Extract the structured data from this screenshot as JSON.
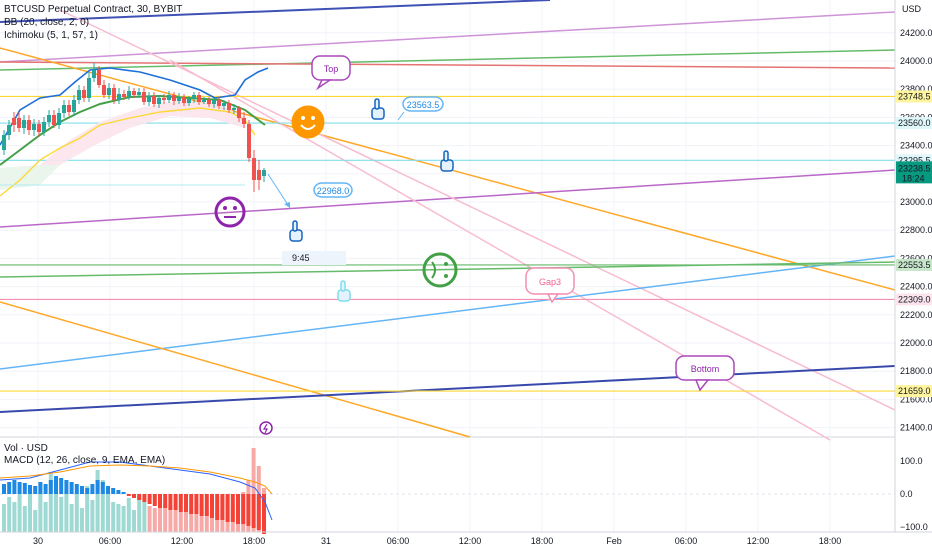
{
  "legend": {
    "symbol": "BTCUSD Perpetual Contract, 30, BYBIT",
    "bb": "BB (20, close, 2, 0)",
    "ichimoku": "Ichimoku (5, 1, 57, 1)",
    "vol": "Vol · USD",
    "macd": "MACD (12, 26, close, 9, EMA, EMA)"
  },
  "price_axis": {
    "currency": "USD",
    "ticks": [
      "24200.0",
      "24000.0",
      "23800.0",
      "23600.0",
      "23400.0",
      "23200.0",
      "23000.0",
      "22800.0",
      "22600.0",
      "22400.0",
      "22200.0",
      "22000.0",
      "21800.0",
      "21600.0",
      "21400.0"
    ],
    "tick_values": [
      24200,
      24000,
      23800,
      23600,
      23400,
      23200,
      23000,
      22800,
      22600,
      22400,
      22200,
      22000,
      21800,
      21600,
      21400
    ]
  },
  "price_tags": [
    {
      "label": "23748.5",
      "value": 23748.5,
      "bg": "#fff59d",
      "fg": "#131722"
    },
    {
      "label": "23560.0",
      "value": 23560,
      "bg": "#e0f7fa",
      "fg": "#131722"
    },
    {
      "label": "23295.5",
      "value": 23295.5,
      "bg": "#e0f7fa",
      "fg": "#131722"
    },
    {
      "label": "22553.5",
      "value": 22553.5,
      "bg": "#c8e6c9",
      "fg": "#131722"
    },
    {
      "label": "22309.0",
      "value": 22309,
      "bg": "#fce4ec",
      "fg": "#131722"
    },
    {
      "label": "21659.0",
      "value": 21659,
      "bg": "#fff59d",
      "fg": "#131722"
    }
  ],
  "last_price": {
    "value_label": "23238.5",
    "countdown": "18:24",
    "value": 23238.5,
    "color": "#089981"
  },
  "macd_axis": {
    "ticks": [
      "100.0",
      "0.0",
      "−100.0"
    ],
    "tick_values": [
      100,
      0,
      -100
    ]
  },
  "time_axis": {
    "labels": [
      "30",
      "06:00",
      "12:00",
      "18:00",
      "31",
      "06:00",
      "12:00",
      "18:00",
      "Feb",
      "06:00",
      "12:00",
      "18:00"
    ]
  },
  "annotations": {
    "top_label": "Top",
    "bottom_label": "Bottom",
    "gap_label": "Gap3",
    "callout_upper": "23563.5",
    "callout_lower": "22968.0",
    "time_hint": "9:45"
  },
  "colors": {
    "up": "#26a69a",
    "down": "#ef5350",
    "bb_basis": "#2962ff",
    "ichimoku_base": "#43a047",
    "ichimoku_conv": "#fdd835"
  }
}
